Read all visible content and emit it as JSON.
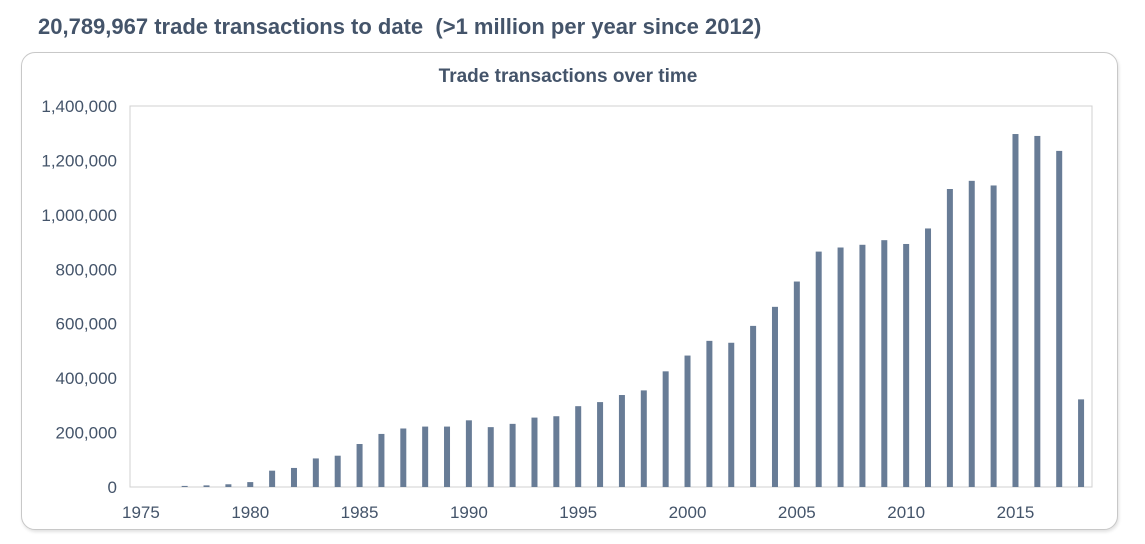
{
  "headline": "20,789,967 trade transactions to date  (>1 million per year since 2012)",
  "chart_data": {
    "type": "bar",
    "title": "Trade transactions over time",
    "xlabel": "",
    "ylabel": "",
    "ylim": [
      0,
      1400000
    ],
    "yticks": [
      "0",
      "200,000",
      "400,000",
      "600,000",
      "800,000",
      "1,000,000",
      "1,200,000",
      "1,400,000"
    ],
    "xticks": [
      "1975",
      "1980",
      "1985",
      "1990",
      "1995",
      "2000",
      "2005",
      "2010",
      "2015"
    ],
    "grid": false,
    "bar_color": "#687c96",
    "categories": [
      1975,
      1976,
      1977,
      1978,
      1979,
      1980,
      1981,
      1982,
      1983,
      1984,
      1985,
      1986,
      1987,
      1988,
      1989,
      1990,
      1991,
      1992,
      1993,
      1994,
      1995,
      1996,
      1997,
      1998,
      1999,
      2000,
      2001,
      2002,
      2003,
      2004,
      2005,
      2006,
      2007,
      2008,
      2009,
      2010,
      2011,
      2012,
      2013,
      2014,
      2015,
      2016,
      2017,
      2018
    ],
    "values": [
      0,
      0,
      4000,
      6000,
      10000,
      18000,
      60000,
      70000,
      105000,
      115000,
      158000,
      195000,
      215000,
      222000,
      222000,
      245000,
      220000,
      232000,
      255000,
      260000,
      297000,
      312000,
      338000,
      355000,
      425000,
      483000,
      537000,
      530000,
      592000,
      662000,
      755000,
      865000,
      880000,
      890000,
      907000,
      893000,
      950000,
      1095000,
      1125000,
      1108000,
      1297000,
      1290000,
      1235000,
      322000
    ]
  }
}
